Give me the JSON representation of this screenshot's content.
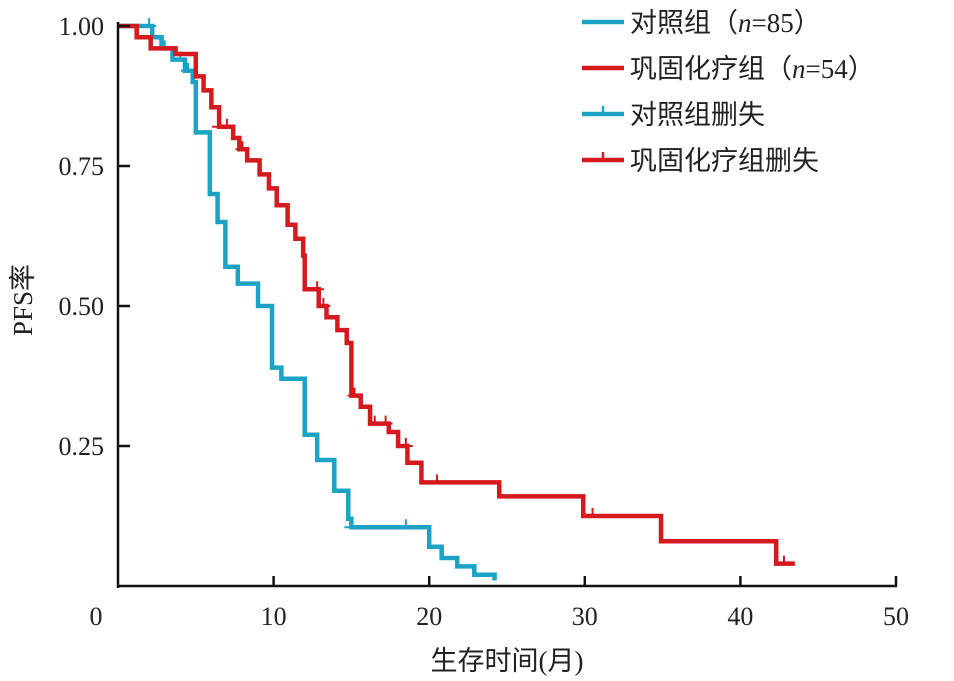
{
  "chart_data": {
    "type": "line",
    "subtype": "kaplan-meier-step",
    "title": "",
    "xlabel": "生存时间(月)",
    "ylabel": "PFS率",
    "xlim": [
      0,
      50
    ],
    "ylim": [
      0,
      1.0
    ],
    "xticks": [
      0,
      10,
      20,
      30,
      40,
      50
    ],
    "xtick_labels": [
      "0",
      "10",
      "20",
      "30",
      "40",
      "50"
    ],
    "yticks": [
      1.0,
      0.75,
      0.5,
      0.25
    ],
    "ytick_labels": [
      "1.00",
      "0.75",
      "0.50",
      "0.25"
    ],
    "grid": false,
    "legend_position": "top-right",
    "series": [
      {
        "name": "对照组",
        "n_label": "n",
        "n_value": "=85",
        "color": "#1ba3c6",
        "steps": [
          [
            0,
            1.0
          ],
          [
            2.2,
            0.98
          ],
          [
            2.8,
            0.96
          ],
          [
            3.5,
            0.94
          ],
          [
            4.3,
            0.92
          ],
          [
            4.8,
            0.9
          ],
          [
            5.0,
            0.81
          ],
          [
            5.9,
            0.7
          ],
          [
            6.4,
            0.65
          ],
          [
            6.9,
            0.57
          ],
          [
            7.7,
            0.54
          ],
          [
            9.0,
            0.5
          ],
          [
            9.9,
            0.39
          ],
          [
            10.5,
            0.37
          ],
          [
            12.0,
            0.27
          ],
          [
            12.8,
            0.225
          ],
          [
            13.9,
            0.17
          ],
          [
            14.8,
            0.12
          ],
          [
            15.0,
            0.105
          ],
          [
            20.0,
            0.07
          ],
          [
            20.8,
            0.05
          ],
          [
            21.8,
            0.035
          ],
          [
            22.9,
            0.02
          ],
          [
            24.2,
            0.01
          ]
        ],
        "end_time": 24.2,
        "censored": [
          [
            2.0,
            1.0
          ],
          [
            3.0,
            0.96
          ],
          [
            4.0,
            0.94
          ],
          [
            4.5,
            0.92
          ],
          [
            15.0,
            0.105
          ],
          [
            18.5,
            0.105
          ]
        ]
      },
      {
        "name": "巩固化疗组",
        "n_label": "n",
        "n_value": "=54",
        "color": "#d6191f",
        "steps": [
          [
            0,
            1.0
          ],
          [
            1.2,
            0.98
          ],
          [
            2.1,
            0.96
          ],
          [
            3.7,
            0.95
          ],
          [
            5.0,
            0.91
          ],
          [
            5.5,
            0.885
          ],
          [
            6.0,
            0.855
          ],
          [
            6.5,
            0.82
          ],
          [
            7.4,
            0.8
          ],
          [
            7.8,
            0.78
          ],
          [
            8.3,
            0.76
          ],
          [
            9.1,
            0.735
          ],
          [
            9.7,
            0.71
          ],
          [
            10.2,
            0.68
          ],
          [
            10.9,
            0.645
          ],
          [
            11.4,
            0.62
          ],
          [
            11.9,
            0.59
          ],
          [
            12.0,
            0.53
          ],
          [
            12.9,
            0.5
          ],
          [
            13.4,
            0.48
          ],
          [
            14.1,
            0.457
          ],
          [
            14.7,
            0.434
          ],
          [
            15.0,
            0.34
          ],
          [
            15.6,
            0.32
          ],
          [
            16.2,
            0.29
          ],
          [
            17.4,
            0.275
          ],
          [
            18.0,
            0.25
          ],
          [
            18.6,
            0.22
          ],
          [
            19.5,
            0.185
          ],
          [
            24.5,
            0.16
          ],
          [
            29.9,
            0.125
          ],
          [
            34.9,
            0.08
          ],
          [
            42.3,
            0.04
          ]
        ],
        "end_time": 43.5,
        "censored": [
          [
            6.5,
            0.82
          ],
          [
            7.0,
            0.82
          ],
          [
            8.0,
            0.78
          ],
          [
            12.8,
            0.53
          ],
          [
            13.2,
            0.5
          ],
          [
            15.2,
            0.34
          ],
          [
            16.5,
            0.29
          ],
          [
            17.2,
            0.29
          ],
          [
            18.5,
            0.25
          ],
          [
            20.5,
            0.185
          ],
          [
            30.5,
            0.125
          ],
          [
            42.8,
            0.04
          ]
        ]
      }
    ],
    "legend": [
      {
        "label": "对照组",
        "n_label": "n",
        "n_value": "=85",
        "kind": "line",
        "color": "#1ba3c6"
      },
      {
        "label": "巩固化疗组",
        "n_label": "n",
        "n_value": "=54",
        "kind": "line",
        "color": "#d6191f"
      },
      {
        "label": "对照组删失",
        "kind": "censor",
        "color": "#1ba3c6"
      },
      {
        "label": "巩固化疗组删失",
        "kind": "censor",
        "color": "#d6191f"
      }
    ]
  }
}
